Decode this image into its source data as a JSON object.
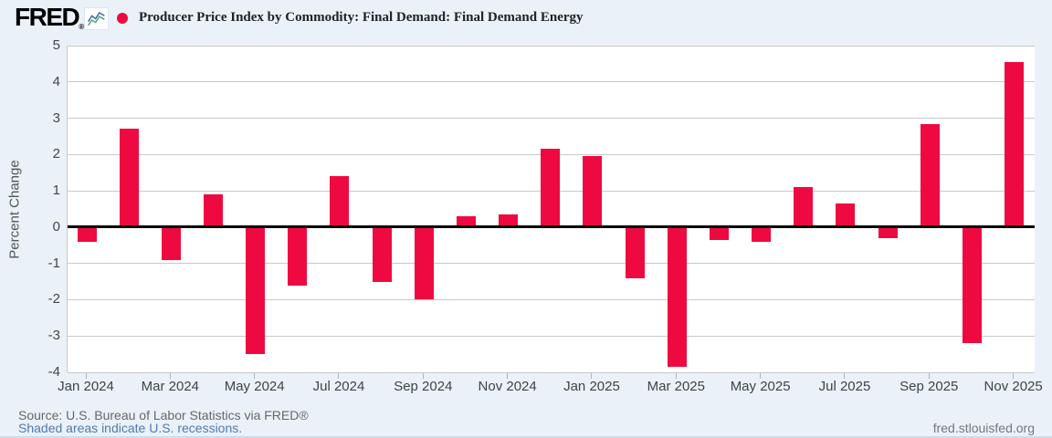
{
  "header": {
    "logo_text": "FRED",
    "logo_reg": "®"
  },
  "chart_data": {
    "type": "bar",
    "title": "Producer Price Index by Commodity: Final Demand: Final Demand Energy",
    "ylabel": "Percent Change",
    "xlabel": "",
    "ylim": [
      -4,
      5
    ],
    "y_ticks": [
      5,
      4,
      3,
      2,
      1,
      0,
      -1,
      -2,
      -3,
      -4
    ],
    "grid": true,
    "legend_position": "top-left",
    "bar_color": "#ee0a40",
    "categories": [
      "Jan 2024",
      "Feb 2024",
      "Mar 2024",
      "Apr 2024",
      "May 2024",
      "Jun 2024",
      "Jul 2024",
      "Aug 2024",
      "Sep 2024",
      "Oct 2024",
      "Nov 2024",
      "Dec 2024",
      "Jan 2025",
      "Feb 2025",
      "Mar 2025",
      "Apr 2025",
      "May 2025",
      "Jun 2025",
      "Jul 2025",
      "Aug 2025",
      "Sep 2025",
      "Oct 2025",
      "Nov 2025"
    ],
    "values": [
      -0.4,
      2.7,
      -0.9,
      0.9,
      -3.5,
      -1.6,
      1.4,
      -1.5,
      -2.0,
      0.3,
      0.35,
      2.15,
      1.95,
      -1.4,
      -3.85,
      -0.35,
      -0.4,
      1.1,
      0.65,
      -0.3,
      2.85,
      -3.2,
      4.55
    ],
    "x_tick_labels": [
      "Jan 2024",
      "Mar 2024",
      "May 2024",
      "Jul 2024",
      "Sep 2024",
      "Nov 2024",
      "Jan 2025",
      "Mar 2025",
      "May 2025",
      "Jul 2025",
      "Sep 2025",
      "Nov 2025"
    ]
  },
  "footer": {
    "source": "Source: U.S. Bureau of Labor Statistics via FRED®",
    "recession_note": "Shaded areas indicate U.S. recessions.",
    "site_link": "fred.stlouisfed.org"
  },
  "colors": {
    "background": "#eaf1f9",
    "plot_background": "#ffffff",
    "grid": "#c9c9c9",
    "zero_line": "#000000",
    "axis_text": "#454545",
    "link_blue": "#4f7cab",
    "source_text": "#66686b",
    "site_text": "#76797c"
  }
}
